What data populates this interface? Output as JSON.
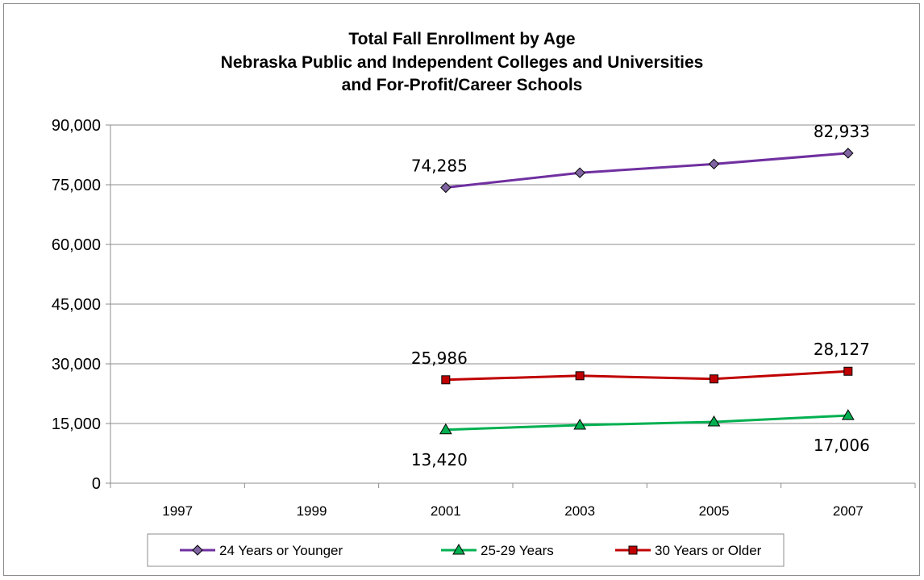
{
  "chart_data": {
    "type": "line",
    "title": [
      "Total Fall Enrollment by Age",
      "Nebraska Public and Independent Colleges and Universities",
      "and For-Profit/Career Schools"
    ],
    "xlabel": "",
    "ylabel": "",
    "categories": [
      "1997",
      "1999",
      "2001",
      "2003",
      "2005",
      "2007"
    ],
    "ylim": [
      0,
      90000
    ],
    "yticks": [
      0,
      15000,
      30000,
      45000,
      60000,
      75000,
      90000
    ],
    "ytick_labels": [
      "0",
      "15,000",
      "30,000",
      "45,000",
      "60,000",
      "75,000",
      "90,000"
    ],
    "grid": "horizontal",
    "legend_position": "bottom",
    "series": [
      {
        "name": "24 Years or Younger",
        "color": "#7030a0",
        "marker": "diamond",
        "marker_fill": "#8064a2",
        "values": [
          null,
          null,
          74285,
          78000,
          80200,
          82933
        ],
        "data_labels": [
          null,
          null,
          "74,285",
          null,
          null,
          "82,933"
        ],
        "label_side": "above"
      },
      {
        "name": "25-29 Years",
        "color": "#00b050",
        "marker": "triangle",
        "marker_fill": "#00b050",
        "values": [
          null,
          null,
          13420,
          14600,
          15400,
          17006
        ],
        "data_labels": [
          null,
          null,
          "13,420",
          null,
          null,
          "17,006"
        ],
        "label_side": "below"
      },
      {
        "name": "30 Years or Older",
        "color": "#c00000",
        "marker": "square",
        "marker_fill": "#c00000",
        "values": [
          null,
          null,
          25986,
          27000,
          26200,
          28127
        ],
        "data_labels": [
          null,
          null,
          "25,986",
          null,
          null,
          "28,127"
        ],
        "label_side": "above"
      }
    ]
  }
}
